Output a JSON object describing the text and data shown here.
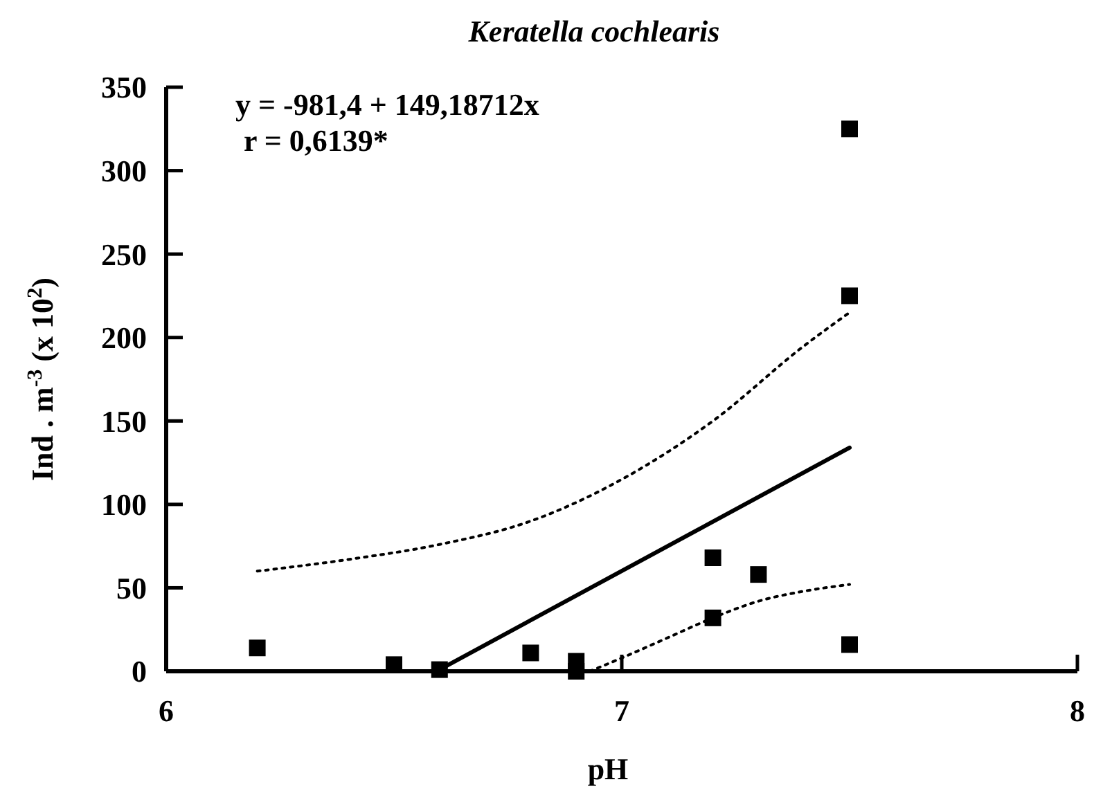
{
  "chart_data": {
    "type": "scatter",
    "title": "Keratella cochlearis",
    "xlabel": "pH",
    "ylabel": "Ind . m$^{-3}$ (x 10$^{2}$)",
    "annotations": [
      "y = -981,4 + 149,18712x",
      "r = 0,6139*"
    ],
    "xlim": [
      6,
      8
    ],
    "xticks": [
      6,
      7,
      8
    ],
    "ylim": [
      0,
      350
    ],
    "yticks": [
      0,
      50,
      100,
      150,
      200,
      250,
      300,
      350
    ],
    "grid": false,
    "series": [
      {
        "color": "#000000",
        "marker": "square",
        "x": [
          6.2,
          6.5,
          6.6,
          6.8,
          6.9,
          6.9,
          7.2,
          7.3,
          7.2,
          7.5,
          7.5,
          7.5
        ],
        "values": [
          14,
          4,
          1,
          11,
          6,
          0,
          68,
          58,
          32,
          16,
          225,
          325
        ]
      },
      {
        "type": "line",
        "color": "#000000",
        "line_style": "solid",
        "x": [
          6.6,
          7.5
        ],
        "values": [
          1,
          134
        ]
      },
      {
        "type": "line",
        "color": "#000000",
        "line_style": "dotted",
        "x": [
          6.2,
          6.4,
          6.6,
          6.8,
          7.0,
          7.2,
          7.4,
          7.5
        ],
        "values": [
          60,
          67,
          76,
          90,
          115,
          150,
          195,
          215
        ]
      },
      {
        "type": "line",
        "color": "#000000",
        "line_style": "dotted",
        "x": [
          6.93,
          7.0,
          7.1,
          7.2,
          7.3,
          7.4,
          7.5
        ],
        "values": [
          0,
          8,
          20,
          32,
          42,
          48,
          52
        ]
      }
    ]
  }
}
